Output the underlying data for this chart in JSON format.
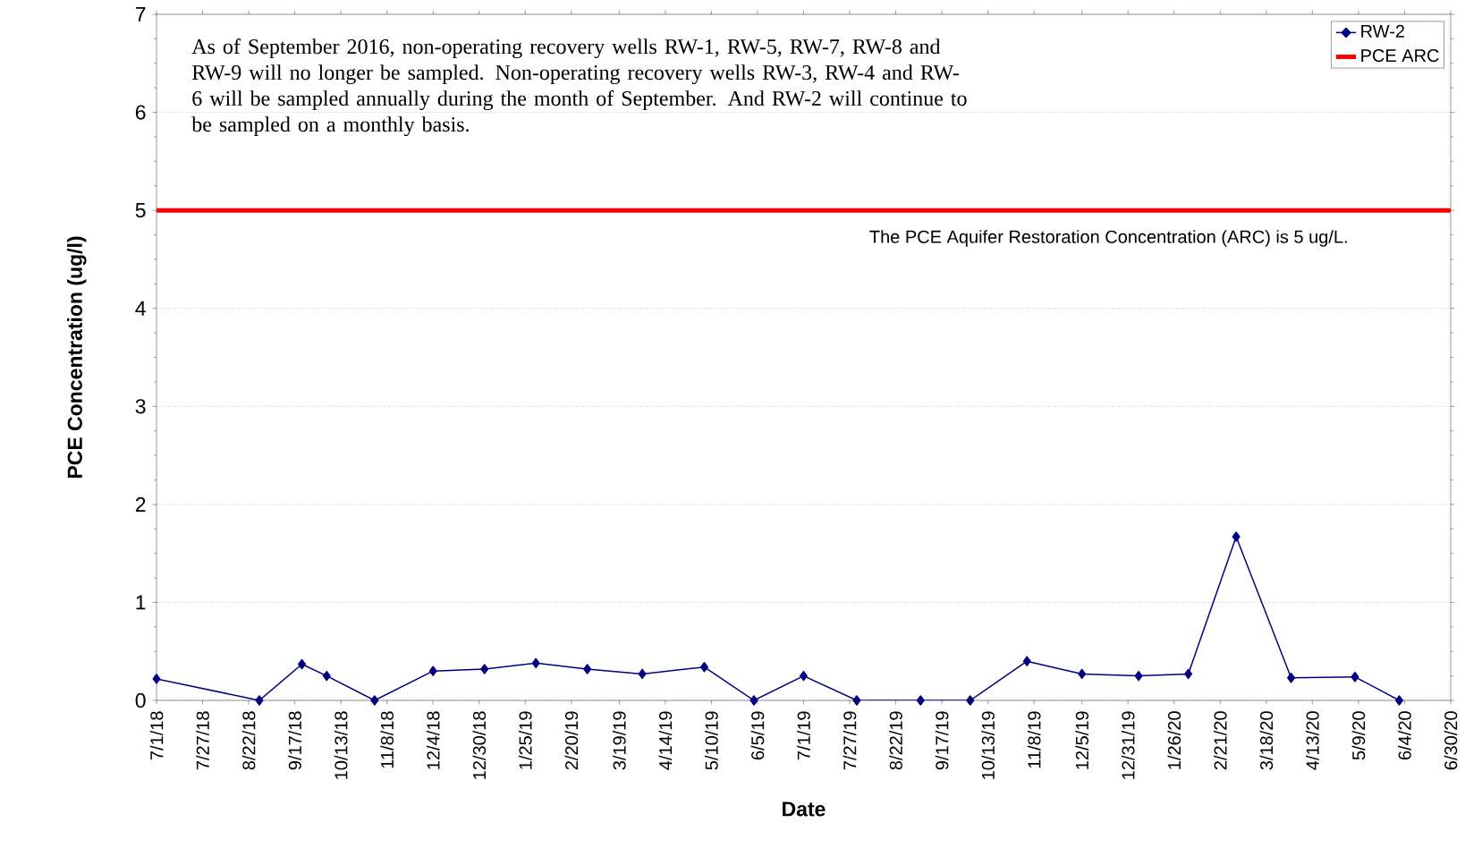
{
  "chart_data": {
    "type": "line",
    "xlabel": "Date",
    "ylabel": "PCE Concentration (ug/l)",
    "annotations": [
      "As of September 2016, non-operating recovery wells RW-1, RW-5, RW-7, RW-8 and RW-9 will no longer be sampled. Non-operating recovery wells RW-3, RW-4 and RW-6 will be sampled annually during the month of  September. And RW-2 will continue to be  sampled on a monthly basis.",
      "The PCE Aquifer Restoration Concentration (ARC) is 5 ug/L."
    ],
    "series": [
      {
        "name": "RW-2",
        "color": "#000080",
        "marker": "diamond",
        "x": [
          "2018-07-01",
          "2018-08-28",
          "2018-09-21",
          "2018-10-05",
          "2018-11-01",
          "2018-12-04",
          "2019-01-02",
          "2019-01-31",
          "2019-03-01",
          "2019-04-01",
          "2019-05-06",
          "2019-06-03",
          "2019-07-01",
          "2019-07-31",
          "2019-09-05",
          "2019-10-03",
          "2019-11-04",
          "2019-12-05",
          "2020-01-06",
          "2020-02-03",
          "2020-03-01",
          "2020-04-01",
          "2020-05-07",
          "2020-06-01"
        ],
        "values": [
          0.22,
          0,
          0.37,
          0.25,
          0,
          0.3,
          0.32,
          0.38,
          0.32,
          0.27,
          0.34,
          0,
          0.25,
          0,
          0,
          0,
          0.4,
          0.27,
          0.25,
          0.27,
          1.67,
          0.23,
          0.24,
          0
        ]
      },
      {
        "name": "PCE ARC",
        "color": "#ff0000",
        "marker": "none",
        "x": [
          "2018-07-01",
          "2020-06-30"
        ],
        "values": [
          5,
          5
        ]
      }
    ],
    "xlim": [
      "2018-07-01",
      "2020-06-30"
    ],
    "xticks": [
      {
        "value": "2018-07-01",
        "label": "7/1/18"
      },
      {
        "value": "2018-07-27",
        "label": "7/27/18"
      },
      {
        "value": "2018-08-22",
        "label": "8/22/18"
      },
      {
        "value": "2018-09-17",
        "label": "9/17/18"
      },
      {
        "value": "2018-10-13",
        "label": "10/13/18"
      },
      {
        "value": "2018-11-08",
        "label": "11/8/18"
      },
      {
        "value": "2018-12-04",
        "label": "12/4/18"
      },
      {
        "value": "2018-12-30",
        "label": "12/30/18"
      },
      {
        "value": "2019-01-25",
        "label": "1/25/19"
      },
      {
        "value": "2019-02-20",
        "label": "2/20/19"
      },
      {
        "value": "2019-03-19",
        "label": "3/19/19"
      },
      {
        "value": "2019-04-14",
        "label": "4/14/19"
      },
      {
        "value": "2019-05-10",
        "label": "5/10/19"
      },
      {
        "value": "2019-06-05",
        "label": "6/5/19"
      },
      {
        "value": "2019-07-01",
        "label": "7/1/19"
      },
      {
        "value": "2019-07-27",
        "label": "7/27/19"
      },
      {
        "value": "2019-08-22",
        "label": "8/22/19"
      },
      {
        "value": "2019-09-17",
        "label": "9/17/19"
      },
      {
        "value": "2019-10-13",
        "label": "10/13/19"
      },
      {
        "value": "2019-11-08",
        "label": "11/8/19"
      },
      {
        "value": "2019-12-05",
        "label": "12/5/19"
      },
      {
        "value": "2019-12-31",
        "label": "12/31/19"
      },
      {
        "value": "2020-01-26",
        "label": "1/26/20"
      },
      {
        "value": "2020-02-21",
        "label": "2/21/20"
      },
      {
        "value": "2020-03-18",
        "label": "3/18/20"
      },
      {
        "value": "2020-04-13",
        "label": "4/13/20"
      },
      {
        "value": "2020-05-09",
        "label": "5/9/20"
      },
      {
        "value": "2020-06-04",
        "label": "6/4/20"
      },
      {
        "value": "2020-06-30",
        "label": "6/30/20"
      }
    ],
    "ylim": [
      0,
      7
    ],
    "yticks": [
      0,
      1,
      2,
      3,
      4,
      5,
      6,
      7
    ],
    "grid": "y",
    "legend": "top right"
  }
}
